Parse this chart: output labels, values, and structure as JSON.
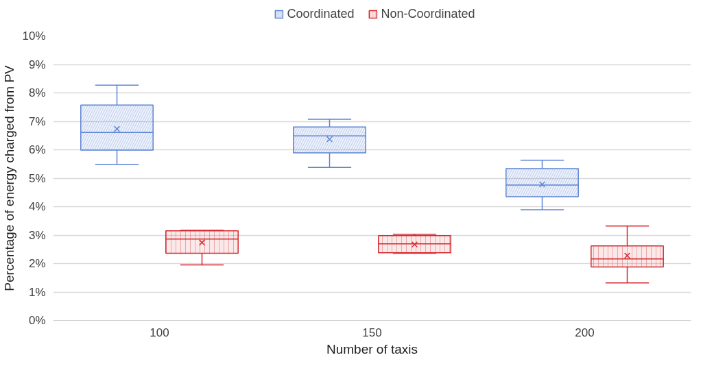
{
  "chart_data": {
    "type": "box",
    "xlabel": "Number of taxis",
    "ylabel": "Percentage of energy charged from PV",
    "categories": [
      "100",
      "150",
      "200"
    ],
    "ylim": [
      0,
      10
    ],
    "yticks": [
      {
        "value": 0,
        "label": "0%"
      },
      {
        "value": 1,
        "label": "1%"
      },
      {
        "value": 2,
        "label": "2%"
      },
      {
        "value": 3,
        "label": "3%"
      },
      {
        "value": 4,
        "label": "4%"
      },
      {
        "value": 5,
        "label": "5%"
      },
      {
        "value": 6,
        "label": "6%"
      },
      {
        "value": 7,
        "label": "7%"
      },
      {
        "value": 8,
        "label": "8%"
      },
      {
        "value": 9,
        "label": "9%"
      },
      {
        "value": 10,
        "label": "10%"
      }
    ],
    "grid": "y",
    "legend": "top",
    "series": [
      {
        "name": "Coordinated",
        "color": "#5b84d4",
        "boxes": [
          {
            "low": 5.48,
            "q1": 5.99,
            "median": 6.61,
            "q3": 7.57,
            "high": 8.27,
            "mean": 6.73
          },
          {
            "low": 5.38,
            "q1": 5.89,
            "median": 6.49,
            "q3": 6.8,
            "high": 7.07,
            "mean": 6.37
          },
          {
            "low": 3.89,
            "q1": 4.35,
            "median": 4.76,
            "q3": 5.34,
            "high": 5.63,
            "mean": 4.78
          }
        ]
      },
      {
        "name": "Non-Coordinated",
        "color": "#d42a2f",
        "boxes": [
          {
            "low": 1.95,
            "q1": 2.36,
            "median": 2.86,
            "q3": 3.15,
            "high": 3.17,
            "mean": 2.74
          },
          {
            "low": 2.36,
            "q1": 2.38,
            "median": 2.69,
            "q3": 2.98,
            "high": 3.03,
            "mean": 2.67
          },
          {
            "low": 1.32,
            "q1": 1.88,
            "median": 2.16,
            "q3": 2.62,
            "high": 3.32,
            "mean": 2.28
          }
        ]
      }
    ]
  }
}
